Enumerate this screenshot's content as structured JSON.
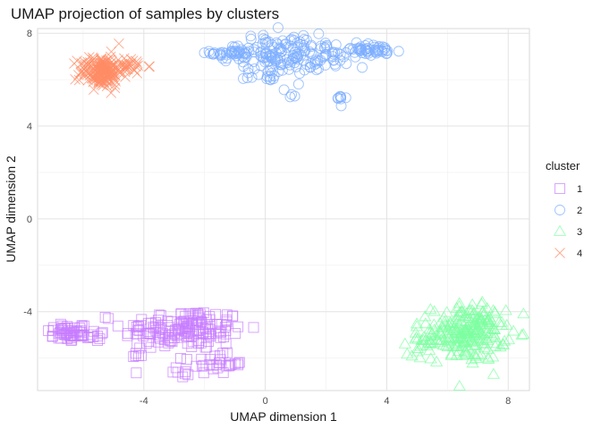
{
  "chart_data": {
    "type": "scatter",
    "title": "UMAP projection of samples by clusters",
    "xlabel": "UMAP dimension 1",
    "ylabel": "UMAP dimension 2",
    "xlim": [
      -7.5,
      8.7
    ],
    "ylim": [
      -7.4,
      8.2
    ],
    "xticks": [
      -4,
      0,
      4,
      8
    ],
    "yticks": [
      -4,
      0,
      4,
      8
    ],
    "grid": true,
    "legend": {
      "title": "cluster",
      "position": "right",
      "entries": [
        {
          "label": "1",
          "shape": "square",
          "color": "#c77cff"
        },
        {
          "label": "2",
          "shape": "circle",
          "color": "#7caeff"
        },
        {
          "label": "3",
          "shape": "triangle",
          "color": "#7cffa0"
        },
        {
          "label": "4",
          "shape": "x",
          "color": "#ff8c66"
        }
      ]
    },
    "series": [
      {
        "name": "1",
        "shape": "square",
        "color": "#c77cff",
        "clusters": [
          {
            "cx": -6.5,
            "cy": -4.9,
            "sx": 0.35,
            "sy": 0.2,
            "n": 45
          },
          {
            "cx": -5.6,
            "cy": -5.05,
            "sx": 0.35,
            "sy": 0.12,
            "n": 15
          },
          {
            "cx": -2.7,
            "cy": -4.75,
            "sx": 1.0,
            "sy": 0.45,
            "n": 160
          },
          {
            "cx": -1.7,
            "cy": -6.25,
            "sx": 0.5,
            "sy": 0.2,
            "n": 30
          },
          {
            "cx": -2.9,
            "cy": -6.7,
            "sx": 0.15,
            "sy": 0.1,
            "n": 6
          },
          {
            "cx": -4.3,
            "cy": -5.8,
            "sx": 0.12,
            "sy": 0.1,
            "n": 5
          }
        ]
      },
      {
        "name": "2",
        "shape": "circle",
        "color": "#7caeff",
        "clusters": [
          {
            "cx": -1.0,
            "cy": 7.15,
            "sx": 0.4,
            "sy": 0.15,
            "n": 45
          },
          {
            "cx": 0.5,
            "cy": 7.1,
            "sx": 0.65,
            "sy": 0.45,
            "n": 110
          },
          {
            "cx": 2.2,
            "cy": 7.05,
            "sx": 0.55,
            "sy": 0.25,
            "n": 50
          },
          {
            "cx": 3.6,
            "cy": 7.25,
            "sx": 0.45,
            "sy": 0.12,
            "n": 40
          },
          {
            "cx": 2.5,
            "cy": 5.2,
            "sx": 0.08,
            "sy": 0.12,
            "n": 8
          },
          {
            "cx": 0.1,
            "cy": 6.2,
            "sx": 0.4,
            "sy": 0.15,
            "n": 15
          },
          {
            "cx": 0.8,
            "cy": 5.4,
            "sx": 0.1,
            "sy": 0.1,
            "n": 4
          }
        ]
      },
      {
        "name": "3",
        "shape": "triangle",
        "color": "#7cffa0",
        "clusters": [
          {
            "cx": 6.7,
            "cy": -4.9,
            "sx": 0.6,
            "sy": 0.6,
            "n": 220
          },
          {
            "cx": 5.3,
            "cy": -5.25,
            "sx": 0.3,
            "sy": 0.3,
            "n": 30
          }
        ]
      },
      {
        "name": "4",
        "shape": "x",
        "color": "#ff8c66",
        "clusters": [
          {
            "cx": -5.4,
            "cy": 6.35,
            "sx": 0.35,
            "sy": 0.35,
            "n": 170
          },
          {
            "cx": -4.5,
            "cy": 6.6,
            "sx": 0.3,
            "sy": 0.18,
            "n": 30
          }
        ]
      }
    ]
  }
}
